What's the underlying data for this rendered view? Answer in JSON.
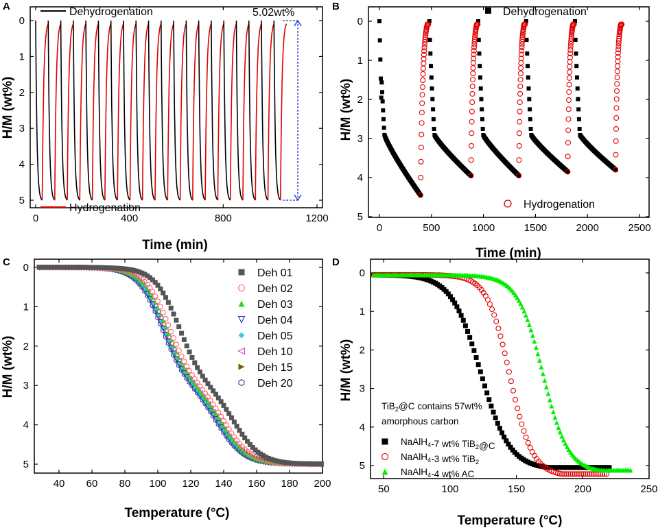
{
  "chart_data": [
    {
      "panel": "A",
      "type": "line",
      "xlabel": "Time (min)",
      "ylabel": "H/M (wt%)",
      "xlim": [
        0,
        1200
      ],
      "ylim": [
        0,
        5
      ],
      "y_reversed": true,
      "xticks": [
        0,
        400,
        800,
        1200
      ],
      "yticks": [
        0,
        1,
        2,
        3,
        4,
        5
      ],
      "annotation": "5.02wt%",
      "cycles": 20,
      "period_min": 53.5,
      "series": [
        {
          "name": "Dehydrogenation",
          "color": "#000000"
        },
        {
          "name": "Hydrogenation",
          "color": "#e00000"
        }
      ]
    },
    {
      "panel": "B",
      "type": "scatter",
      "xlabel": "Time (min)",
      "ylabel": "H/M (wt%)",
      "xlim": [
        -50,
        2550
      ],
      "ylim": [
        0,
        5
      ],
      "y_reversed": true,
      "xticks": [
        0,
        500,
        1000,
        1500,
        2000,
        2500
      ],
      "yticks": [
        0,
        1,
        2,
        3,
        4,
        5
      ],
      "series": [
        {
          "name": "Dehydrogenation",
          "marker": "square",
          "color": "#000000",
          "segments": [
            [
              0,
              395,
              4.45
            ],
            [
              480,
              880,
              3.95
            ],
            [
              950,
              1340,
              3.95
            ],
            [
              1410,
              1810,
              3.85
            ],
            [
              1880,
              2270,
              3.8
            ]
          ]
        },
        {
          "name": "Hydrogenation",
          "marker": "circle-open",
          "color": "#e00000",
          "segments": [
            [
              395,
              470,
              4.45
            ],
            [
              880,
              945,
              3.95
            ],
            [
              1340,
              1400,
              3.95
            ],
            [
              1810,
              1870,
              3.85
            ],
            [
              2270,
              2330,
              3.8
            ]
          ]
        }
      ]
    },
    {
      "panel": "C",
      "type": "scatter",
      "xlabel": "Temperature (°C)",
      "ylabel": "H/M (wt%)",
      "xlim": [
        25,
        200
      ],
      "ylim": [
        0,
        5.2
      ],
      "y_reversed": true,
      "xticks": [
        40,
        60,
        80,
        100,
        120,
        140,
        160,
        180,
        200
      ],
      "yticks": [
        0,
        1,
        2,
        3,
        4,
        5
      ],
      "series": [
        {
          "name": "Deh 01",
          "marker": "square",
          "color": "#555555",
          "shift": 10
        },
        {
          "name": "Deh 02",
          "marker": "circle-open",
          "color": "#ff6666",
          "shift": 4
        },
        {
          "name": "Deh 03",
          "marker": "triangle-up",
          "color": "#22dd22",
          "shift": 2
        },
        {
          "name": "Deh 04",
          "marker": "triangle-down-open",
          "color": "#3333bb",
          "shift": 0
        },
        {
          "name": "Deh 05",
          "marker": "diamond",
          "color": "#33ccee",
          "shift": 0
        },
        {
          "name": "Deh 10",
          "marker": "triangle-left-open",
          "color": "#cc44cc",
          "shift": 1
        },
        {
          "name": "Deh 15",
          "marker": "triangle-right",
          "color": "#666600",
          "shift": 0.5
        },
        {
          "name": "Deh 20",
          "marker": "hexagon-open",
          "color": "#333399",
          "shift": -0.5
        }
      ]
    },
    {
      "panel": "D",
      "type": "scatter",
      "xlabel": "Temperature (°C)",
      "ylabel": "H/M (wt%)",
      "xlim": [
        40,
        250
      ],
      "ylim": [
        0,
        5.2
      ],
      "y_reversed": true,
      "xticks": [
        50,
        100,
        150,
        200,
        250
      ],
      "yticks": [
        0,
        1,
        2,
        3,
        4,
        5
      ],
      "annotation": [
        "TiB2@C contains 57wt%",
        "amorphous carbon"
      ],
      "series": [
        {
          "name": "NaAlH4-7 wt% TiB2@C",
          "marker": "square",
          "color": "#000000",
          "xmid": 123,
          "xmax": 220,
          "ymax": 5.05
        },
        {
          "name": "NaAlH4-3 wt% TiB2",
          "marker": "circle-open",
          "color": "#e00000",
          "xmid": 145,
          "xmax": 218,
          "ymax": 5.22
        },
        {
          "name": "NaAlH4-4 wt% AC",
          "marker": "triangle-up",
          "color": "#00ee00",
          "xmid": 170,
          "xmax": 236,
          "ymax": 5.12
        }
      ]
    }
  ],
  "panels": {
    "A": {
      "label": "A",
      "xlabel": "Time (min)",
      "ylabel": "H/M (wt%)",
      "legend1": "Dehydrogenation",
      "legend2": "Hydrogenation",
      "annotation": "5.02wt%"
    },
    "B": {
      "label": "B",
      "xlabel": "Time (min)",
      "ylabel": "H/M (wt%)",
      "legend1": "Dehydrogenation",
      "legend2": "Hydrogenation"
    },
    "C": {
      "label": "C",
      "xlabel": "Temperature (°C)",
      "ylabel": "H/M (wt%)"
    },
    "D": {
      "label": "D",
      "xlabel": "Temperature (°C)",
      "ylabel": "H/M (wt%)",
      "note1": "TiB2@C contains 57wt%",
      "note2": "amorphous carbon"
    }
  }
}
